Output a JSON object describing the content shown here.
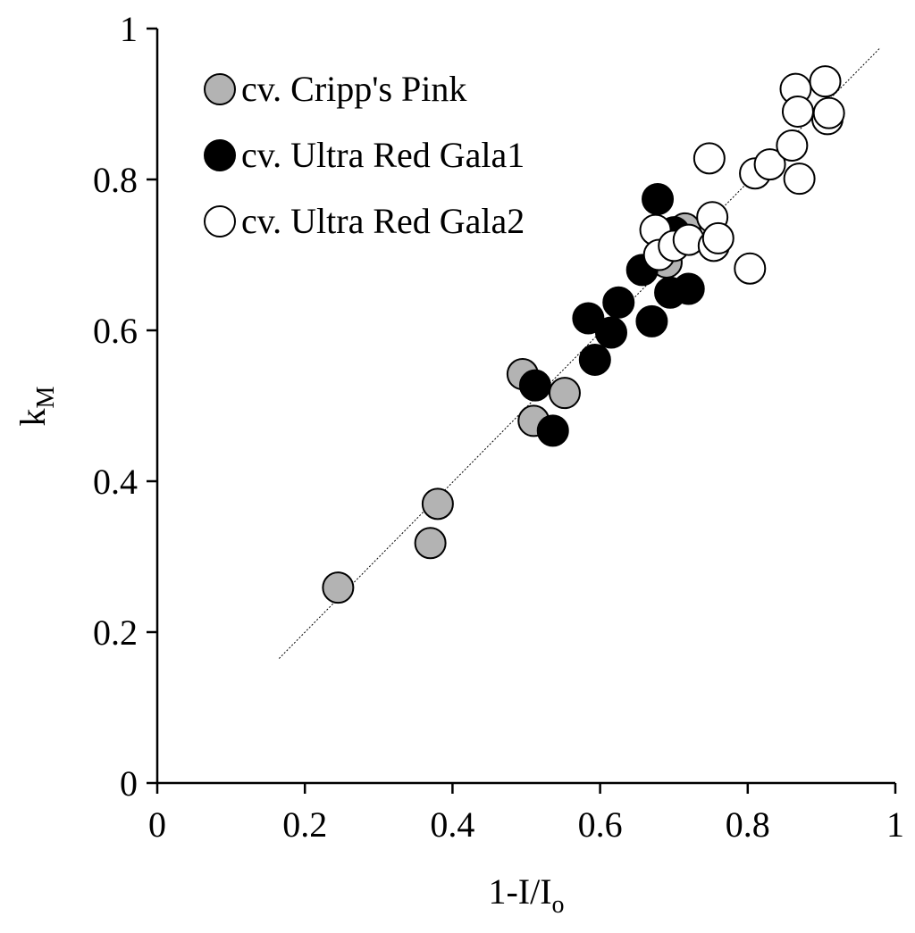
{
  "chart_data": {
    "type": "scatter",
    "xlabel": {
      "main": "1-I/I",
      "sub": "o"
    },
    "ylabel": {
      "main": "k",
      "sub": "M"
    },
    "xlim": [
      0,
      1
    ],
    "ylim": [
      0,
      1
    ],
    "xticks": [
      0,
      0.2,
      0.4,
      0.6,
      0.8,
      1
    ],
    "xtick_labels": [
      "0",
      "0.2",
      "0.4",
      "0.6",
      "0.8",
      "1"
    ],
    "yticks": [
      0,
      0.2,
      0.4,
      0.6,
      0.8,
      1
    ],
    "ytick_labels": [
      "0",
      "0.2",
      "0.4",
      "0.6",
      "0.8",
      "1"
    ],
    "grid": false,
    "legend_position": "top-left",
    "trendline": {
      "x": [
        0.165,
        0.98
      ],
      "y": [
        0.165,
        0.975
      ]
    },
    "series": [
      {
        "name": "cv. Cripp's Pink",
        "color": "#b3b3b3",
        "points": [
          [
            0.245,
            0.259
          ],
          [
            0.37,
            0.318
          ],
          [
            0.38,
            0.37
          ],
          [
            0.495,
            0.542
          ],
          [
            0.51,
            0.48
          ],
          [
            0.552,
            0.517
          ],
          [
            0.69,
            0.69
          ],
          [
            0.715,
            0.735
          ]
        ]
      },
      {
        "name": "cv. Ultra Red Gala1",
        "color": "#000000",
        "points": [
          [
            0.512,
            0.527
          ],
          [
            0.536,
            0.467
          ],
          [
            0.584,
            0.616
          ],
          [
            0.593,
            0.561
          ],
          [
            0.615,
            0.597
          ],
          [
            0.625,
            0.637
          ],
          [
            0.657,
            0.68
          ],
          [
            0.67,
            0.612
          ],
          [
            0.678,
            0.774
          ],
          [
            0.695,
            0.65
          ],
          [
            0.7,
            0.73
          ],
          [
            0.72,
            0.655
          ]
        ]
      },
      {
        "name": "cv. Ultra Red Gala2",
        "color": "#ffffff",
        "points": [
          [
            0.675,
            0.733
          ],
          [
            0.68,
            0.7
          ],
          [
            0.7,
            0.712
          ],
          [
            0.72,
            0.72
          ],
          [
            0.748,
            0.828
          ],
          [
            0.752,
            0.75
          ],
          [
            0.754,
            0.712
          ],
          [
            0.76,
            0.722
          ],
          [
            0.803,
            0.682
          ],
          [
            0.81,
            0.808
          ],
          [
            0.83,
            0.82
          ],
          [
            0.86,
            0.845
          ],
          [
            0.865,
            0.92
          ],
          [
            0.868,
            0.89
          ],
          [
            0.87,
            0.801
          ],
          [
            0.905,
            0.93
          ],
          [
            0.908,
            0.88
          ],
          [
            0.91,
            0.888
          ]
        ]
      }
    ]
  }
}
